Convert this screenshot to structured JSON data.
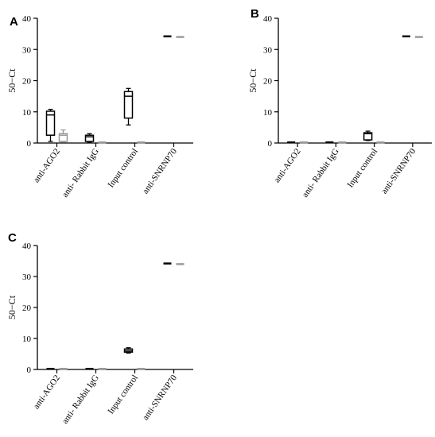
{
  "chart_data": [
    {
      "panel": "A",
      "type": "box",
      "ylabel": "50−Ct",
      "ylim": [
        0,
        40
      ],
      "yticks": [
        0,
        10,
        20,
        30,
        40
      ],
      "categories": [
        "anti-AGO2",
        "anti- Rabbit IgG",
        "Input control",
        "anti-SNRNP70"
      ],
      "series": [
        {
          "color": "#000000",
          "boxes": [
            {
              "min": 0.5,
              "q1": 2.5,
              "median": 9.0,
              "q3": 10.2,
              "max": 10.8
            },
            {
              "min": 0.2,
              "q1": 0.5,
              "median": 2.0,
              "q3": 2.5,
              "max": 3.0
            },
            {
              "min": 5.8,
              "q1": 8.0,
              "median": 15.0,
              "q3": 16.5,
              "max": 17.5
            },
            {
              "min": 34.2,
              "q1": 34.2,
              "median": 34.2,
              "q3": 34.2,
              "max": 34.2
            }
          ]
        },
        {
          "color": "#999999",
          "boxes": [
            {
              "min": 0.3,
              "q1": 0.5,
              "median": 2.5,
              "q3": 3.0,
              "max": 4.2
            },
            {
              "min": 0.2,
              "q1": 0.2,
              "median": 0.2,
              "q3": 0.2,
              "max": 0.2
            },
            {
              "min": 0.2,
              "q1": 0.2,
              "median": 0.2,
              "q3": 0.2,
              "max": 0.2
            },
            {
              "min": 34.0,
              "q1": 34.0,
              "median": 34.0,
              "q3": 34.0,
              "max": 34.0
            }
          ]
        }
      ]
    },
    {
      "panel": "B",
      "type": "box",
      "ylabel": "50−Ct",
      "ylim": [
        0,
        40
      ],
      "yticks": [
        0,
        10,
        20,
        30,
        40
      ],
      "categories": [
        "anti-AGO2",
        "anti- Rabbit IgG",
        "Input control",
        "anti-SNRNP70"
      ],
      "series": [
        {
          "color": "#000000",
          "boxes": [
            {
              "min": 0.2,
              "q1": 0.2,
              "median": 0.2,
              "q3": 0.2,
              "max": 0.2
            },
            {
              "min": 0.2,
              "q1": 0.2,
              "median": 0.2,
              "q3": 0.2,
              "max": 0.2
            },
            {
              "min": 0.8,
              "q1": 1.0,
              "median": 3.0,
              "q3": 3.3,
              "max": 3.8
            },
            {
              "min": 34.2,
              "q1": 34.2,
              "median": 34.2,
              "q3": 34.2,
              "max": 34.2
            }
          ]
        },
        {
          "color": "#999999",
          "boxes": [
            {
              "min": 0.2,
              "q1": 0.2,
              "median": 0.2,
              "q3": 0.2,
              "max": 0.2
            },
            {
              "min": 0.2,
              "q1": 0.2,
              "median": 0.2,
              "q3": 0.2,
              "max": 0.2
            },
            {
              "min": 0.2,
              "q1": 0.2,
              "median": 0.2,
              "q3": 0.2,
              "max": 0.2
            },
            {
              "min": 34.0,
              "q1": 34.0,
              "median": 34.0,
              "q3": 34.0,
              "max": 34.0
            }
          ]
        }
      ]
    },
    {
      "panel": "C",
      "type": "box",
      "ylabel": "50−Ct",
      "ylim": [
        0,
        40
      ],
      "yticks": [
        0,
        10,
        20,
        30,
        40
      ],
      "categories": [
        "anti-AGO2",
        "anti- Rabbit IgG",
        "Input control",
        "anti-SNRNP70"
      ],
      "series": [
        {
          "color": "#000000",
          "boxes": [
            {
              "min": 0.2,
              "q1": 0.2,
              "median": 0.2,
              "q3": 0.2,
              "max": 0.2
            },
            {
              "min": 0.2,
              "q1": 0.2,
              "median": 0.2,
              "q3": 0.2,
              "max": 0.2
            },
            {
              "min": 5.3,
              "q1": 5.6,
              "median": 6.0,
              "q3": 6.6,
              "max": 7.0
            },
            {
              "min": 34.2,
              "q1": 34.2,
              "median": 34.2,
              "q3": 34.2,
              "max": 34.2
            }
          ]
        },
        {
          "color": "#999999",
          "boxes": [
            {
              "min": 0.2,
              "q1": 0.2,
              "median": 0.2,
              "q3": 0.2,
              "max": 0.2
            },
            {
              "min": 0.2,
              "q1": 0.2,
              "median": 0.2,
              "q3": 0.2,
              "max": 0.2
            },
            {
              "min": 0.2,
              "q1": 0.2,
              "median": 0.2,
              "q3": 0.2,
              "max": 0.2
            },
            {
              "min": 34.0,
              "q1": 34.0,
              "median": 34.0,
              "q3": 34.0,
              "max": 34.0
            }
          ]
        }
      ]
    }
  ]
}
